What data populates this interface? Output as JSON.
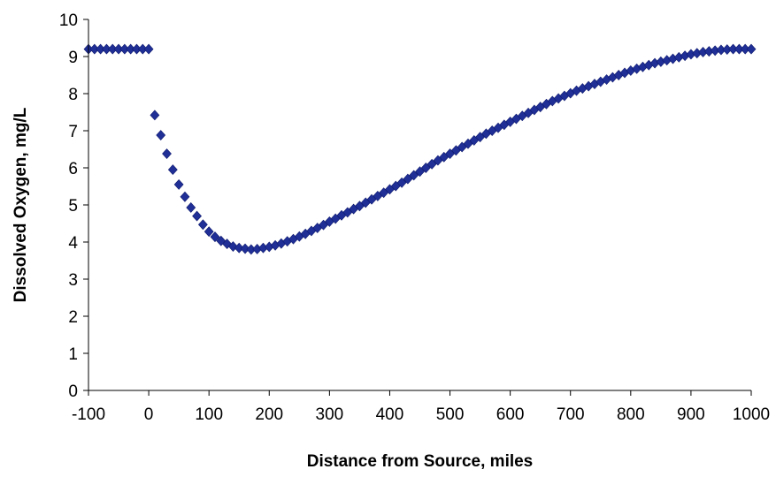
{
  "chart_data": {
    "type": "scatter",
    "title": "",
    "xlabel": "Distance from Source, miles",
    "ylabel": "Dissolved Oxygen, mg/L",
    "xlim": [
      -100,
      1000
    ],
    "ylim": [
      0,
      10
    ],
    "x_ticks": [
      "-100",
      "0",
      "100",
      "200",
      "300",
      "400",
      "500",
      "600",
      "700",
      "800",
      "900",
      "1000"
    ],
    "y_ticks": [
      "0",
      "1",
      "2",
      "3",
      "4",
      "5",
      "6",
      "7",
      "8",
      "9",
      "10"
    ],
    "grid": false,
    "legend": "none",
    "marker": "diamond",
    "colors": {
      "marker": "#1f2f96",
      "axis": "#000000"
    },
    "series": [
      {
        "x": [
          -100,
          -90,
          -80,
          -70,
          -60,
          -50,
          -40,
          -30,
          -20,
          -10,
          0,
          10,
          20,
          30,
          40,
          50,
          60,
          70,
          80,
          90,
          100,
          110,
          120,
          130,
          140,
          150,
          160,
          170,
          180,
          190,
          200,
          210,
          220,
          230,
          240,
          250,
          260,
          270,
          280,
          290,
          300,
          310,
          320,
          330,
          340,
          350,
          360,
          370,
          380,
          390,
          400,
          410,
          420,
          430,
          440,
          450,
          460,
          470,
          480,
          490,
          500,
          510,
          520,
          530,
          540,
          550,
          560,
          570,
          580,
          590,
          600,
          610,
          620,
          630,
          640,
          650,
          660,
          670,
          680,
          690,
          700,
          710,
          720,
          730,
          740,
          750,
          760,
          770,
          780,
          790,
          800,
          810,
          820,
          830,
          840,
          850,
          860,
          870,
          880,
          890,
          900,
          910,
          920,
          930,
          940,
          950,
          960,
          970,
          980,
          990,
          1000
        ],
        "y": [
          9.2,
          9.2,
          9.2,
          9.2,
          9.2,
          9.2,
          9.2,
          9.2,
          9.2,
          9.2,
          9.2,
          7.42,
          6.88,
          6.38,
          5.95,
          5.55,
          5.22,
          4.93,
          4.7,
          4.47,
          4.28,
          4.14,
          4.03,
          3.95,
          3.88,
          3.84,
          3.82,
          3.8,
          3.81,
          3.84,
          3.87,
          3.91,
          3.96,
          4.02,
          4.08,
          4.15,
          4.22,
          4.3,
          4.38,
          4.46,
          4.55,
          4.63,
          4.72,
          4.8,
          4.89,
          4.97,
          5.06,
          5.15,
          5.24,
          5.33,
          5.42,
          5.51,
          5.6,
          5.7,
          5.8,
          5.9,
          6.0,
          6.1,
          6.2,
          6.29,
          6.38,
          6.47,
          6.56,
          6.65,
          6.74,
          6.83,
          6.92,
          7.0,
          7.08,
          7.16,
          7.24,
          7.32,
          7.4,
          7.48,
          7.56,
          7.64,
          7.72,
          7.8,
          7.87,
          7.94,
          8.01,
          8.08,
          8.14,
          8.2,
          8.26,
          8.32,
          8.38,
          8.44,
          8.5,
          8.56,
          8.62,
          8.67,
          8.72,
          8.77,
          8.82,
          8.86,
          8.9,
          8.94,
          8.98,
          9.02,
          9.06,
          9.09,
          9.12,
          9.14,
          9.16,
          9.18,
          9.19,
          9.2,
          9.2,
          9.2,
          9.2
        ]
      }
    ]
  }
}
